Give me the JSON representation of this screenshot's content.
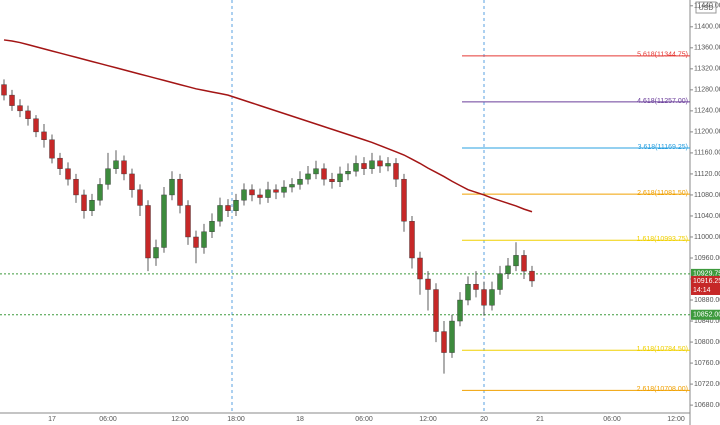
{
  "chart_data": {
    "type": "candlestick",
    "currency": "USD",
    "countdown": "14:14",
    "up_color": "#3d8b3d",
    "down_color": "#c62828",
    "ylim": [
      10665,
      11451
    ],
    "yticks": [
      {
        "value": 10680,
        "label": "10680.00"
      },
      {
        "value": 10720,
        "label": "10720.00"
      },
      {
        "value": 10760,
        "label": "10760.00"
      },
      {
        "value": 10800,
        "label": "10800.00"
      },
      {
        "value": 10840,
        "label": "10840.00"
      },
      {
        "value": 10880,
        "label": "10880.00"
      },
      {
        "value": 10920,
        "label": "10920.00"
      },
      {
        "value": 10960,
        "label": "10960.00"
      },
      {
        "value": 11000,
        "label": "11000.00"
      },
      {
        "value": 11040,
        "label": "11040.00"
      },
      {
        "value": 11080,
        "label": "11080.00"
      },
      {
        "value": 11120,
        "label": "11120.00"
      },
      {
        "value": 11160,
        "label": "11160.00"
      },
      {
        "value": 11200,
        "label": "11200.00"
      },
      {
        "value": 11240,
        "label": "11240.00"
      },
      {
        "value": 11280,
        "label": "11280.00"
      },
      {
        "value": 11320,
        "label": "11320.00"
      },
      {
        "value": 11360,
        "label": "11360.00"
      },
      {
        "value": 11400,
        "label": "11400.00"
      },
      {
        "value": 11440,
        "label": "11440.00"
      }
    ],
    "categories": [
      null,
      null,
      null,
      null,
      null,
      null,
      "17",
      null,
      null,
      null,
      null,
      null,
      null,
      "06:00",
      null,
      null,
      null,
      null,
      null,
      null,
      null,
      null,
      "12:00",
      null,
      null,
      null,
      null,
      null,
      null,
      "18:00",
      null,
      null,
      null,
      null,
      null,
      null,
      null,
      "18",
      null,
      null,
      null,
      null,
      null,
      null,
      null,
      "06:00",
      null,
      null,
      null,
      null,
      null,
      null,
      null,
      "12:00",
      null,
      null,
      null,
      null,
      null,
      null,
      "20",
      null,
      null,
      null,
      null,
      null,
      null,
      "21",
      null,
      null,
      null,
      null,
      null,
      null,
      null,
      null,
      "06:00",
      null,
      null,
      null,
      null,
      null,
      null,
      null,
      "12:00",
      null
    ],
    "open": [
      11290,
      11270,
      11250,
      11240,
      11225,
      11200,
      11185,
      11150,
      11130,
      11110,
      11080,
      11050,
      11070,
      11100,
      11130,
      11145,
      11120,
      11090,
      11060,
      10960,
      10980,
      11080,
      11110,
      11060,
      11000,
      10980,
      11010,
      11030,
      11060,
      11050,
      11070,
      11090,
      11080,
      11075,
      11090,
      11085,
      11095,
      11100,
      11110,
      11120,
      11130,
      11110,
      11105,
      11120,
      11125,
      11140,
      11130,
      11145,
      11135,
      11140,
      11110,
      11030,
      10960,
      10920,
      10900,
      10820,
      10780,
      10840,
      10880,
      10910,
      10900,
      10870,
      10900,
      10930,
      10945,
      10965,
      10935,
      null,
      null,
      null,
      null,
      null,
      null,
      null,
      null,
      null,
      null,
      null,
      null,
      null,
      null,
      null,
      null,
      null,
      null,
      null
    ],
    "high": [
      11300,
      11280,
      11262,
      11250,
      11232,
      11215,
      11195,
      11160,
      11142,
      11120,
      11090,
      11082,
      11112,
      11160,
      11165,
      11155,
      11130,
      11100,
      11070,
      10995,
      11095,
      11125,
      11120,
      11070,
      11012,
      11025,
      11045,
      11075,
      11072,
      11082,
      11102,
      11100,
      11092,
      11105,
      11100,
      11108,
      11112,
      11125,
      11135,
      11145,
      11140,
      11122,
      11134,
      11140,
      11155,
      11152,
      11160,
      11155,
      11152,
      11150,
      11120,
      11040,
      10972,
      10935,
      10912,
      10840,
      10852,
      10895,
      10925,
      10935,
      10915,
      10915,
      10945,
      10960,
      10990,
      10975,
      10945,
      null,
      null,
      null,
      null,
      null,
      null,
      null,
      null,
      null,
      null,
      null,
      null,
      null,
      null,
      null,
      null,
      null,
      null,
      null
    ],
    "low": [
      11260,
      11240,
      11228,
      11212,
      11190,
      11170,
      11140,
      11118,
      11098,
      11065,
      11035,
      11040,
      11060,
      11090,
      11120,
      11108,
      11075,
      11040,
      10935,
      10945,
      10970,
      11070,
      11045,
      10985,
      10950,
      10968,
      10998,
      11020,
      11038,
      11040,
      11060,
      11068,
      11062,
      11065,
      11072,
      11075,
      11085,
      11090,
      11100,
      11110,
      11098,
      11092,
      11095,
      11108,
      11115,
      11118,
      11120,
      11122,
      11125,
      11095,
      11010,
      10940,
      10890,
      10860,
      10800,
      10740,
      10770,
      10830,
      10870,
      10885,
      10850,
      10860,
      10890,
      10920,
      10935,
      10920,
      10905,
      null,
      null,
      null,
      null,
      null,
      null,
      null,
      null,
      null,
      null,
      null,
      null,
      null,
      null,
      null,
      null,
      null,
      null,
      null
    ],
    "close": [
      11270,
      11250,
      11240,
      11225,
      11200,
      11185,
      11150,
      11130,
      11110,
      11080,
      11050,
      11070,
      11100,
      11130,
      11145,
      11120,
      11090,
      11060,
      10960,
      10980,
      11080,
      11110,
      11060,
      11000,
      10980,
      11010,
      11030,
      11060,
      11050,
      11070,
      11090,
      11080,
      11075,
      11090,
      11085,
      11095,
      11100,
      11110,
      11120,
      11130,
      11110,
      11105,
      11120,
      11125,
      11140,
      11130,
      11145,
      11135,
      11140,
      11110,
      11030,
      10960,
      10920,
      10900,
      10820,
      10780,
      10840,
      10880,
      10910,
      10900,
      10870,
      10900,
      10930,
      10945,
      10965,
      10935,
      10916.25,
      null,
      null,
      null,
      null,
      null,
      null,
      null,
      null,
      null,
      null,
      null,
      null,
      null,
      null,
      null,
      null,
      null,
      null,
      null
    ],
    "ma": {
      "color": "#a31515",
      "values": [
        11375,
        11373,
        11370,
        11366,
        11362,
        11358,
        11354,
        11350,
        11346,
        11342,
        11338,
        11334,
        11330,
        11326,
        11322,
        11318,
        11314,
        11310,
        11306,
        11302,
        11298,
        11294,
        11290,
        11286,
        11282,
        11279,
        11276,
        11273,
        11270,
        11265,
        11260,
        11255,
        11250,
        11245,
        11240,
        11235,
        11230,
        11225,
        11220,
        11215,
        11210,
        11205,
        11200,
        11195,
        11190,
        11185,
        11180,
        11174,
        11168,
        11162,
        11156,
        11148,
        11140,
        11131,
        11123,
        11115,
        11106,
        11098,
        11090,
        11085,
        11080,
        11074,
        11069,
        11064,
        11059,
        11053,
        11048,
        null,
        null,
        null,
        null,
        null,
        null,
        null,
        null,
        null,
        null,
        null,
        null,
        null,
        null,
        null,
        null,
        null,
        null,
        null
      ]
    },
    "levels": [
      {
        "value": 10929.75,
        "label": "10929.75",
        "color": "#3d9a3d"
      },
      {
        "value": 10852.0,
        "label": "10852.00",
        "color": "#3d9a3d"
      }
    ],
    "fib": [
      {
        "value": 11344.75,
        "label": "5.618(11344.75)",
        "color": "#e53935"
      },
      {
        "value": 11257.0,
        "label": "4.618(11257.00)",
        "color": "#6a3d9a"
      },
      {
        "value": 11169.25,
        "label": "3.618(11169.25)",
        "color": "#29a0e0"
      },
      {
        "value": 11081.5,
        "label": "2.618(11081.50)",
        "color": "#f0a000"
      },
      {
        "value": 10993.75,
        "label": "1.618(10993.75)",
        "color": "#f0d000"
      },
      {
        "value": 10784.5,
        "label": "1.618(10784.50)",
        "color": "#f0d000"
      },
      {
        "value": 10708.0,
        "label": "2.618(10708.00)",
        "color": "#f0a000"
      }
    ]
  }
}
